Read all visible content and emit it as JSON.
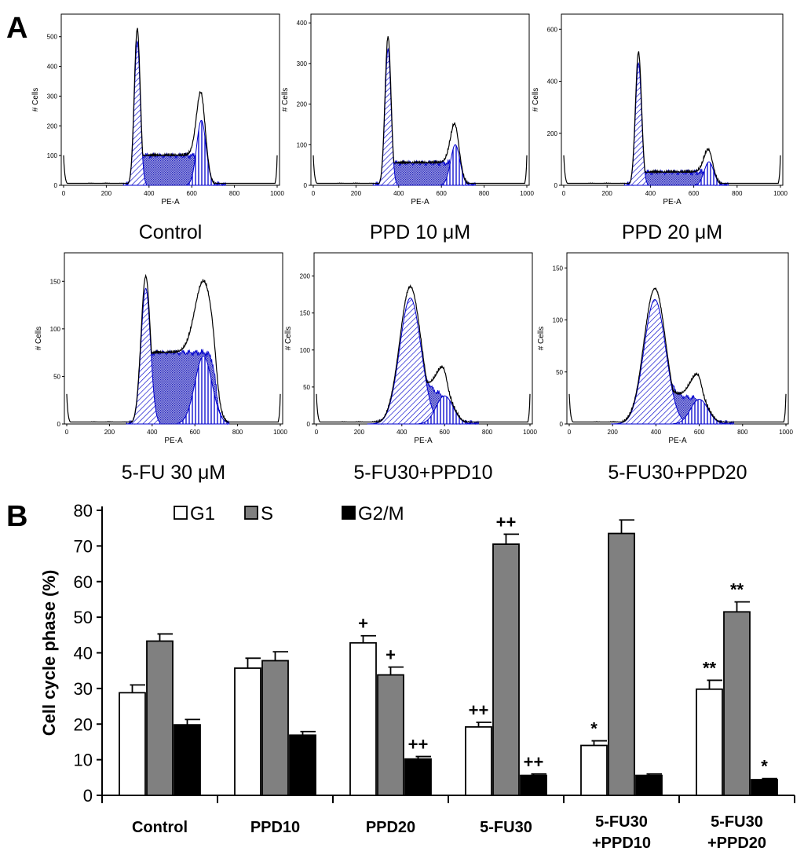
{
  "panel_a_label": "A",
  "panel_b_label": "B",
  "histograms": {
    "y_axis_label": "# Cells",
    "x_axis_label": "PE-A",
    "x_ticks": [
      "0",
      "200",
      "400",
      "600",
      "800",
      "1000"
    ],
    "panels": [
      {
        "caption": "Control",
        "y_ticks": [
          "0",
          "100",
          "200",
          "300",
          "400",
          "500"
        ],
        "ymax": 560,
        "g1_peak": 345,
        "g1_height": 525,
        "g2_peak": 645,
        "g2_height": 230,
        "s_level": 100,
        "style": "normal"
      },
      {
        "caption": "PPD 10 μM",
        "y_ticks": [
          "0",
          "100",
          "200",
          "300",
          "400"
        ],
        "ymax": 410,
        "g1_peak": 350,
        "g1_height": 365,
        "g2_peak": 665,
        "g2_height": 105,
        "s_level": 55,
        "style": "normal"
      },
      {
        "caption": "PPD 20 μM",
        "y_ticks": [
          "0",
          "200",
          "400",
          "600"
        ],
        "ymax": 640,
        "g1_peak": 345,
        "g1_height": 510,
        "g2_peak": 670,
        "g2_height": 95,
        "s_level": 50,
        "style": "normal"
      },
      {
        "caption": "5-FU 30 μM",
        "y_ticks": [
          "0",
          "50",
          "100",
          "150"
        ],
        "ymax": 175,
        "g1_peak": 370,
        "g1_height": 155,
        "g2_peak": 640,
        "g2_height": 75,
        "s_level": 75,
        "style": "broad"
      },
      {
        "caption": "5-FU30+PPD10",
        "y_ticks": [
          "0",
          "50",
          "100",
          "150",
          "200"
        ],
        "ymax": 225,
        "g1_peak": 440,
        "g1_height": 185,
        "g2_peak": 600,
        "g2_height": 40,
        "s_level": 40,
        "style": "bell"
      },
      {
        "caption": "5-FU30+PPD20",
        "y_ticks": [
          "0",
          "50",
          "100",
          "150"
        ],
        "ymax": 160,
        "g1_peak": 395,
        "g1_height": 130,
        "g2_peak": 600,
        "g2_height": 25,
        "s_level": 25,
        "style": "bell"
      }
    ]
  },
  "chart_data": {
    "type": "bar",
    "title": "",
    "xlabel": "",
    "ylabel": "Cell cycle phase (%)",
    "ylim": [
      0,
      80
    ],
    "y_ticks": [
      "0",
      "10",
      "20",
      "30",
      "40",
      "50",
      "60",
      "70",
      "80"
    ],
    "categories": [
      "Control",
      "PPD10",
      "PPD20",
      "5-FU30",
      "5-FU30\n+PPD10",
      "5-FU30\n+PPD20"
    ],
    "series": [
      {
        "name": "G1",
        "color": "#ffffff",
        "values": [
          28.8,
          35.7,
          42.8,
          19.2,
          14.0,
          29.8
        ],
        "errors": [
          2.2,
          2.8,
          2.0,
          1.3,
          1.3,
          2.5
        ],
        "annotations": [
          "",
          "",
          "+",
          "++",
          "*",
          "**"
        ]
      },
      {
        "name": "S",
        "color": "#808080",
        "values": [
          43.3,
          37.8,
          33.8,
          70.5,
          73.5,
          51.5
        ],
        "errors": [
          2.0,
          2.5,
          2.2,
          2.8,
          3.8,
          2.8
        ],
        "annotations": [
          "",
          "",
          "+",
          "++",
          "",
          "**"
        ]
      },
      {
        "name": "G2/M",
        "color": "#000000",
        "values": [
          19.8,
          16.9,
          10.2,
          5.6,
          5.6,
          4.4
        ],
        "errors": [
          1.5,
          1.0,
          0.7,
          0.4,
          0.4,
          0.3
        ],
        "annotations": [
          "",
          "",
          "++",
          "++",
          "",
          "*"
        ]
      }
    ],
    "legend_position": "top"
  }
}
